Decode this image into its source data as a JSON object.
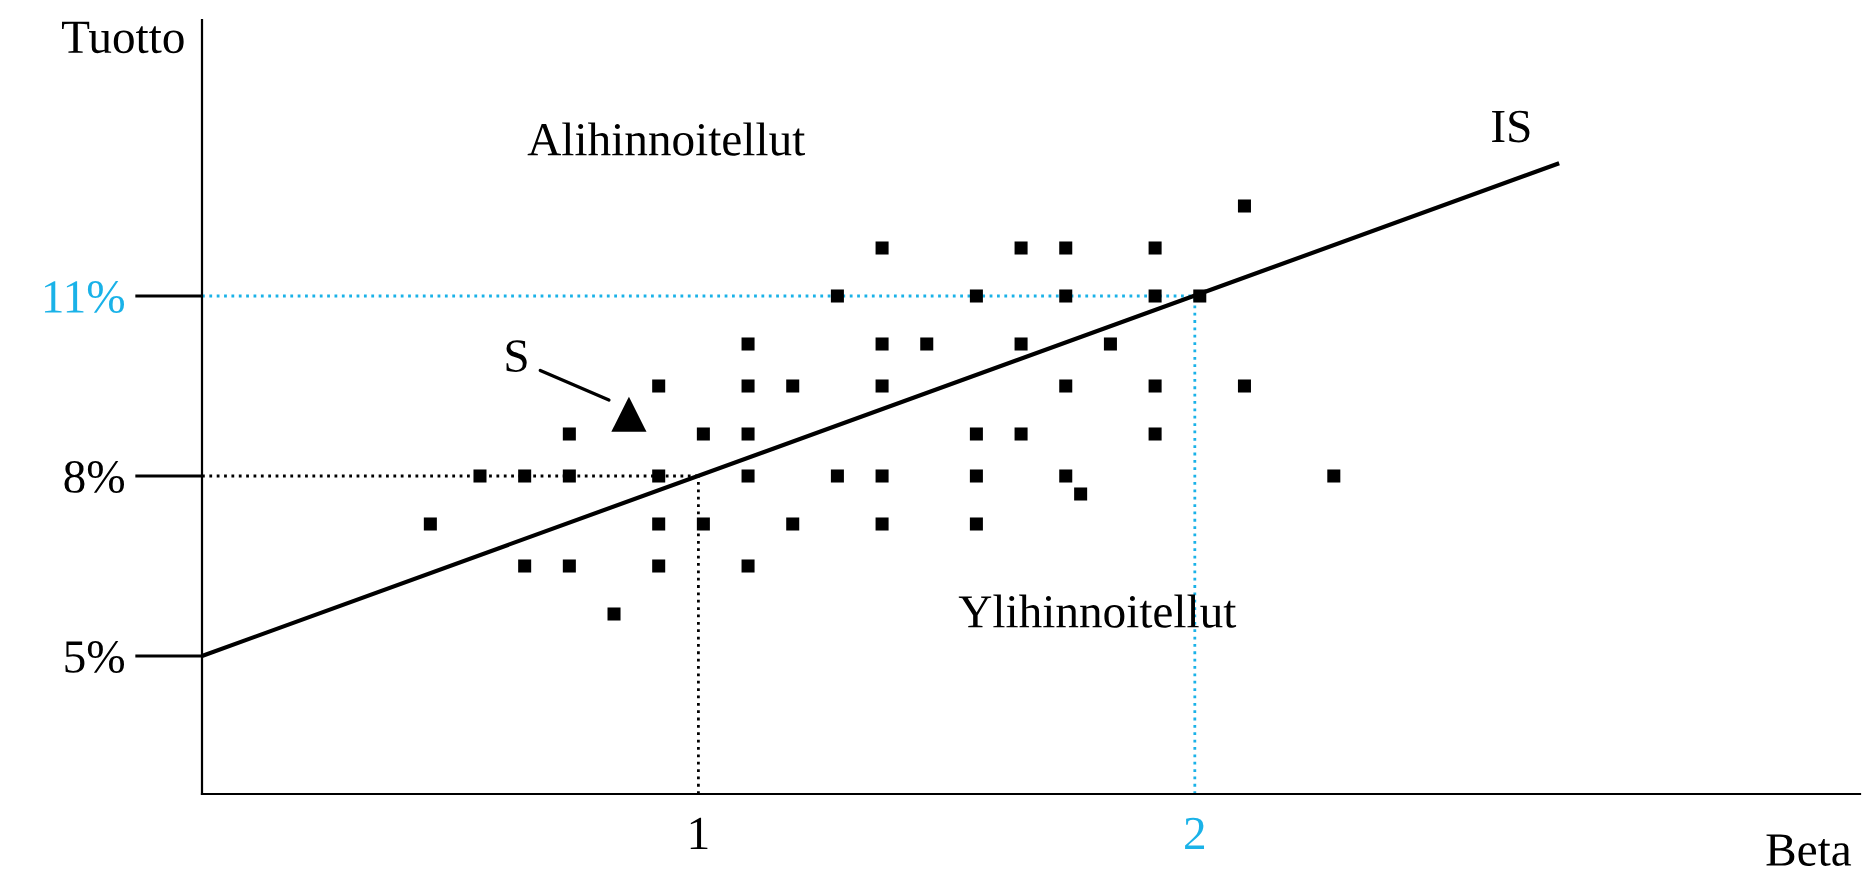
{
  "chart_data": {
    "type": "scatter",
    "xlabel": "Beta",
    "ylabel": "Tuotto",
    "xlim": [
      0,
      3.34
    ],
    "ylim": [
      2.7,
      15.6
    ],
    "xticks": [
      1,
      2
    ],
    "yticks": [
      {
        "value": 5,
        "label": "5%"
      },
      {
        "value": 8,
        "label": "8%"
      },
      {
        "value": 11,
        "label": "11%"
      }
    ],
    "grid": false,
    "legend": false,
    "series": [
      {
        "color": "#000000",
        "marker": "square",
        "x": [
          2.1,
          1.37,
          1.65,
          1.74,
          1.92,
          1.28,
          1.56,
          1.74,
          1.92,
          2.01,
          1.1,
          1.37,
          1.46,
          1.65,
          1.83,
          0.92,
          1.1,
          1.19,
          1.37,
          1.74,
          1.92,
          2.1,
          0.74,
          1.01,
          1.1,
          1.56,
          1.65,
          1.92,
          0.56,
          0.65,
          0.74,
          0.92,
          1.1,
          1.28,
          1.37,
          1.56,
          1.74,
          2.28,
          1.77,
          0.46,
          0.92,
          1.01,
          1.19,
          1.37,
          1.56,
          0.65,
          0.74,
          0.92,
          1.1,
          0.83
        ],
        "values": [
          12.5,
          11.8,
          11.8,
          11.8,
          11.8,
          11,
          11,
          11,
          11,
          11,
          10.2,
          10.2,
          10.2,
          10.2,
          10.2,
          9.5,
          9.5,
          9.5,
          9.5,
          9.5,
          9.5,
          9.5,
          8.7,
          8.7,
          8.7,
          8.7,
          8.7,
          8.7,
          8,
          8,
          8,
          8,
          8,
          8,
          8,
          8,
          8,
          8,
          7.7,
          7.2,
          7.2,
          7.2,
          7.2,
          7.2,
          7.2,
          6.5,
          6.5,
          6.5,
          6.5,
          5.7
        ]
      },
      {
        "color": "#000000",
        "marker": "triangle",
        "x": [
          0.86
        ],
        "values": [
          9.03
        ]
      },
      {
        "type": "line",
        "name": "IS",
        "color": "#000000",
        "x": [
          0,
          2.73
        ],
        "values": [
          5,
          13.2
        ]
      }
    ],
    "ref_lines": [
      {
        "axis": "y",
        "value": 8,
        "color": "#000000",
        "line_style": "dotted"
      },
      {
        "axis": "x",
        "value": 1,
        "color": "#000000",
        "line_style": "dotted"
      },
      {
        "axis": "y",
        "value": 11,
        "color": "#1ab2e8",
        "line_style": "dotted"
      },
      {
        "axis": "x",
        "value": 2,
        "color": "#1ab2e8",
        "line_style": "dotted"
      }
    ],
    "annotations": [
      "Alihinnoitellut",
      "Ylihinnoitellut",
      {
        "text": "S",
        "x": 0.86,
        "y": 9.03
      }
    ]
  }
}
